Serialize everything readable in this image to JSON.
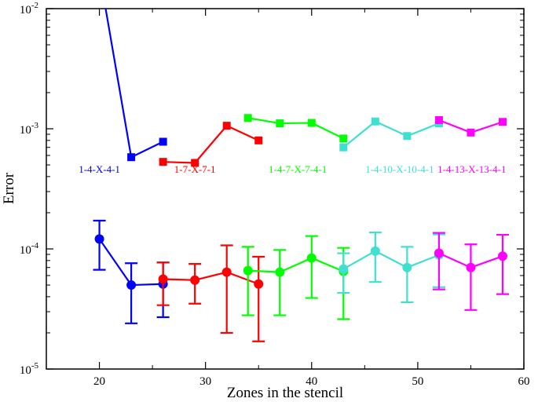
{
  "chart_data": {
    "type": "line",
    "xlabel": "Zones in the stencil",
    "ylabel": "Error",
    "xlim": [
      15,
      60
    ],
    "ylim": [
      1e-05,
      0.01
    ],
    "yscale": "log",
    "grid": false,
    "xticks": [
      {
        "value": 20,
        "label": "20"
      },
      {
        "value": 30,
        "label": "30"
      },
      {
        "value": 40,
        "label": "40"
      },
      {
        "value": 50,
        "label": "50"
      },
      {
        "value": 60,
        "label": "60"
      }
    ],
    "yticks": [
      {
        "value": 1e-05,
        "base": "10",
        "exp": "-5"
      },
      {
        "value": 0.0001,
        "base": "10",
        "exp": "-4"
      },
      {
        "value": 0.001,
        "base": "10",
        "exp": "-3"
      },
      {
        "value": 0.01,
        "base": "10",
        "exp": "-2"
      }
    ],
    "series": [
      {
        "label": "1-4-X-4-1",
        "color": "#0000ff",
        "label_at": [
          20,
          0.00043
        ],
        "squares": [
          [
            20,
            0.02
          ],
          [
            23,
            0.00058
          ],
          [
            26,
            0.00078
          ]
        ],
        "circles": [
          [
            20,
            0.000121
          ],
          [
            23,
            5e-05
          ],
          [
            26,
            5.1e-05
          ]
        ],
        "errors": [
          [
            20,
            6.7e-05,
            0.000172
          ],
          [
            23,
            2.4e-05,
            7.6e-05
          ],
          [
            26,
            2.7e-05,
            7.7e-05
          ]
        ]
      },
      {
        "label": "1-7-X-7-1",
        "color": "#ff0000",
        "label_at": [
          29,
          0.00043
        ],
        "squares": [
          [
            26,
            0.00053
          ],
          [
            29,
            0.00052
          ],
          [
            32,
            0.00106
          ],
          [
            35,
            0.0008
          ]
        ],
        "circles": [
          [
            26,
            5.6e-05
          ],
          [
            29,
            5.5e-05
          ],
          [
            32,
            6.4e-05
          ],
          [
            35,
            5.1e-05
          ]
        ],
        "errors": [
          [
            26,
            3.4e-05,
            7.7e-05
          ],
          [
            29,
            3.5e-05,
            7.5e-05
          ],
          [
            32,
            2e-05,
            0.000107
          ],
          [
            35,
            1.7e-05,
            8.6e-05
          ]
        ]
      },
      {
        "label": "1-4-7-X-7-4-1",
        "color": "#00ff00",
        "label_at": [
          38.7,
          0.00043
        ],
        "squares": [
          [
            34,
            0.00123
          ],
          [
            37,
            0.00111
          ],
          [
            40,
            0.00112
          ],
          [
            43,
            0.00083
          ]
        ],
        "circles": [
          [
            34,
            6.6e-05
          ],
          [
            37,
            6.4e-05
          ],
          [
            40,
            8.4e-05
          ],
          [
            43,
            6.5e-05
          ]
        ],
        "errors": [
          [
            34,
            2.8e-05,
            0.000104
          ],
          [
            37,
            2.8e-05,
            9.8e-05
          ],
          [
            40,
            3.9e-05,
            0.000128
          ],
          [
            43,
            2.6e-05,
            0.000102
          ]
        ]
      },
      {
        "label": "1-4-10-X-10-4-1",
        "color": "#40e0d0",
        "label_at": [
          48.3,
          0.00043
        ],
        "squares": [
          [
            43,
            0.0007
          ],
          [
            46,
            0.00115
          ],
          [
            49,
            0.00087
          ],
          [
            52,
            0.00111
          ]
        ],
        "circles": [
          [
            43,
            6.8e-05
          ],
          [
            46,
            9.6e-05
          ],
          [
            49,
            7e-05
          ],
          [
            52,
            8.9e-05
          ]
        ],
        "errors": [
          [
            43,
            4.3e-05,
            9.2e-05
          ],
          [
            46,
            5.3e-05,
            0.000137
          ],
          [
            49,
            3.6e-05,
            0.000104
          ],
          [
            52,
            4.8e-05,
            0.000132
          ]
        ]
      },
      {
        "label": "1-4-13-X-13-4-1",
        "color": "#ff00ff",
        "label_at": [
          55.1,
          0.00043
        ],
        "squares": [
          [
            52,
            0.00118
          ],
          [
            55,
            0.00093
          ],
          [
            58,
            0.00114
          ]
        ],
        "circles": [
          [
            52,
            9.2e-05
          ],
          [
            55,
            7e-05
          ],
          [
            58,
            8.7e-05
          ]
        ],
        "errors": [
          [
            52,
            4.6e-05,
            0.000136
          ],
          [
            55,
            3.1e-05,
            0.000109
          ],
          [
            58,
            4.2e-05,
            0.000131
          ]
        ]
      }
    ]
  }
}
